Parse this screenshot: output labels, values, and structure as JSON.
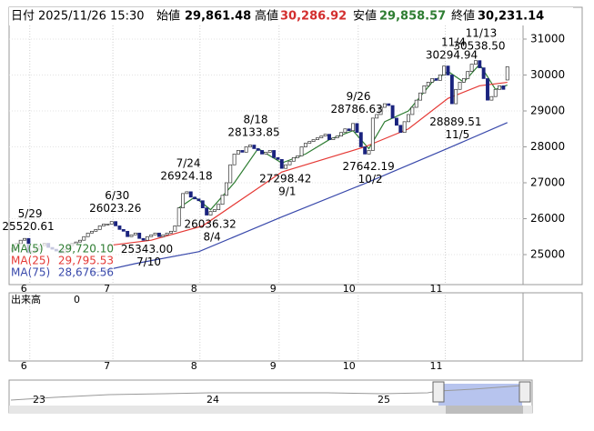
{
  "header": {
    "date_label": "日付",
    "datetime": "2025/11/26 15:30",
    "open_label": "始値",
    "open": "29,861.48",
    "high_label": "高値",
    "high": "30,286.92",
    "low_label": "安値",
    "low": "29,858.57",
    "close_label": "終値",
    "close": "30,231.14"
  },
  "chart_data": {
    "type": "candlestick",
    "open": [
      25100,
      25180,
      25300,
      25400,
      25450,
      25050,
      25100,
      25150,
      25250,
      25300,
      25200,
      25150,
      25100,
      25050,
      25150,
      25250,
      25300,
      25350,
      25400,
      25500,
      25600,
      25650,
      25700,
      25800,
      25850,
      25850,
      25920,
      25800,
      25700,
      25650,
      25500,
      25550,
      25600,
      25450,
      25400,
      25500,
      25550,
      25600,
      25500,
      25550,
      25600,
      25650,
      25800,
      26300,
      26700,
      26750,
      26600,
      26550,
      26500,
      26300,
      26100,
      26200,
      26250,
      26400,
      26650,
      27000,
      27500,
      27800,
      27900,
      27850,
      28000,
      28050,
      27950,
      27900,
      27800,
      27850,
      27900,
      27700,
      27650,
      27400,
      27500,
      27600,
      27700,
      27750,
      28000,
      28100,
      28150,
      28200,
      28250,
      28300,
      28350,
      28200,
      28250,
      28300,
      28400,
      28500,
      28450,
      28650,
      28400,
      28000,
      27800,
      27900,
      28800,
      28900,
      29100,
      29200,
      29150,
      28800,
      28600,
      28400,
      28700,
      28900,
      29100,
      29300,
      29500,
      29700,
      29800,
      29900,
      29850,
      30000,
      30250,
      30000,
      29200,
      29600,
      29800,
      29900,
      30100,
      30300,
      30400,
      30200,
      29900,
      29300,
      29400,
      29600,
      29700,
      29861.48
    ],
    "close": [
      25180,
      25300,
      25400,
      25450,
      25050,
      25100,
      25150,
      25250,
      25300,
      25200,
      25150,
      25100,
      25050,
      25150,
      25250,
      25300,
      25350,
      25400,
      25500,
      25600,
      25650,
      25700,
      25800,
      25850,
      25850,
      25920,
      25800,
      25700,
      25650,
      25500,
      25550,
      25600,
      25450,
      25400,
      25500,
      25550,
      25600,
      25500,
      25550,
      25600,
      25650,
      25800,
      26300,
      26700,
      26750,
      26600,
      26550,
      26500,
      26300,
      26100,
      26200,
      26250,
      26400,
      26650,
      27000,
      27500,
      27800,
      27900,
      27850,
      28000,
      28050,
      27950,
      27900,
      27800,
      27850,
      27900,
      27700,
      27650,
      27400,
      27500,
      27600,
      27700,
      27750,
      28000,
      28100,
      28150,
      28200,
      28250,
      28300,
      28350,
      28200,
      28250,
      28300,
      28400,
      28500,
      28450,
      28650,
      28400,
      28000,
      27800,
      27900,
      28800,
      28900,
      29100,
      29200,
      29150,
      28800,
      28600,
      28400,
      28700,
      28900,
      29100,
      29300,
      29500,
      29700,
      29800,
      29900,
      29850,
      30000,
      30250,
      30000,
      29200,
      29600,
      29800,
      29900,
      30100,
      30300,
      30400,
      30200,
      29900,
      29300,
      29400,
      29600,
      29700,
      29600,
      30231.14
    ],
    "up_color": "#ffffff",
    "down_color": "#1a237e",
    "xticks": [
      {
        "value": 5,
        "label": "6"
      },
      {
        "value": 26,
        "label": "7"
      },
      {
        "value": 48,
        "label": "8"
      },
      {
        "value": 68,
        "label": "9"
      },
      {
        "value": 88,
        "label": "10"
      },
      {
        "value": 110,
        "label": "11"
      }
    ],
    "ylim": [
      24190,
      31835
    ],
    "yticks": [
      25000,
      26000,
      27000,
      28000,
      29000,
      30000,
      31000
    ],
    "series": [
      {
        "name": "MA(5)",
        "value_label": "29,720.10",
        "color": "#2e7d32",
        "x": [
          42,
          46,
          50,
          56,
          62,
          68,
          74,
          80,
          86,
          90,
          94,
          100,
          106,
          110,
          114,
          118,
          122,
          125
        ],
        "values": [
          26300,
          26600,
          26250,
          27000,
          27950,
          27550,
          27800,
          28200,
          28450,
          27950,
          28700,
          29000,
          29800,
          30100,
          29800,
          30300,
          29600,
          29720.1
        ]
      },
      {
        "name": "MA(25)",
        "value_label": "29,795.53",
        "color": "#e53935",
        "x": [
          24,
          35,
          48,
          60,
          68,
          80,
          89,
          100,
          110,
          118,
          125
        ],
        "values": [
          25250,
          25400,
          25800,
          26700,
          27300,
          27700,
          28000,
          28500,
          29350,
          29700,
          29795.53
        ]
      },
      {
        "name": "MA(75)",
        "value_label": "28,676.56",
        "color": "#3949ab",
        "x": [
          20,
          31,
          47,
          68,
          89,
          110,
          125
        ],
        "values": [
          24480,
          24750,
          25080,
          26050,
          26980,
          27960,
          28676.56
        ]
      }
    ],
    "annotations": [
      {
        "x": 3,
        "date": "5/29",
        "value": 25520.61,
        "label": "25520.61",
        "pos": "above"
      },
      {
        "x": 25,
        "date": "6/30",
        "value": 26023.26,
        "label": "26023.26",
        "pos": "above"
      },
      {
        "x": 33,
        "date": "7/10",
        "value": 25343,
        "label": "25343.00",
        "pos": "below"
      },
      {
        "x": 43,
        "date": "7/24",
        "value": 26924.18,
        "label": "26924.18",
        "pos": "above"
      },
      {
        "x": 49,
        "date": "8/4",
        "value": 26036.32,
        "label": "26036.32",
        "pos": "below"
      },
      {
        "x": 60,
        "date": "8/18",
        "value": 28133.85,
        "label": "28133.85",
        "pos": "above"
      },
      {
        "x": 68,
        "date": "9/1",
        "value": 27298.42,
        "label": "27298.42",
        "pos": "below"
      },
      {
        "x": 86,
        "date": "9/26",
        "value": 28786.63,
        "label": "28786.63",
        "pos": "above"
      },
      {
        "x": 89,
        "date": "10/2",
        "value": 27642.19,
        "label": "27642.19",
        "pos": "below"
      },
      {
        "x": 111,
        "date": "11/5",
        "value": 28889.51,
        "label": "28889.51",
        "pos": "below"
      },
      {
        "x": 110,
        "date": "11/4",
        "value": 30294.94,
        "label": "30294.94",
        "pos": "above"
      },
      {
        "x": 117,
        "date": "11/13",
        "value": 30538.5,
        "label": "30538.50",
        "pos": "above"
      }
    ]
  },
  "volume": {
    "label": "出来高",
    "value": "0"
  },
  "navigator": {
    "labels": [
      "23",
      "24",
      "25"
    ]
  }
}
